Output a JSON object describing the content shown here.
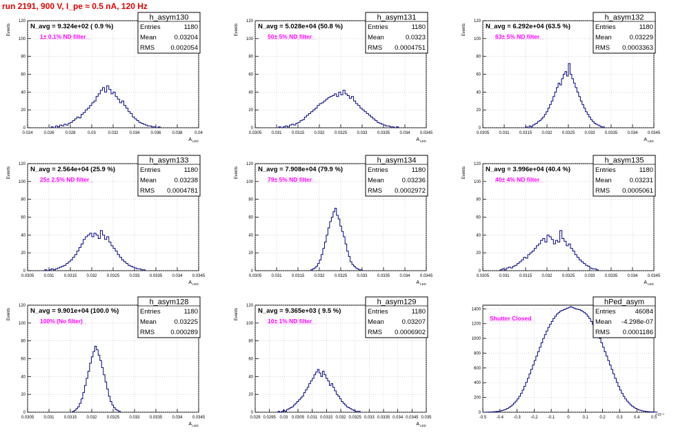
{
  "header": {
    "run_title": "run 2191,   900 V, I_pe ≈ 0.5 nA, 120 Hz"
  },
  "chart_data": [
    {
      "type": "histogram",
      "name": "h_asym130",
      "title": "N_avg = 9.324e+02 ( 0.9 %)",
      "filter_label": "1± 0.1% ND filter",
      "stats": {
        "Entries": "1180",
        "Mean": "0.03204",
        "RMS": "0.002054"
      },
      "ylabel": "Events",
      "xlabel": "A",
      "xlabel_sub": "LED",
      "xlim": [
        0.024,
        0.04
      ],
      "ylim": [
        0,
        120
      ],
      "xticks": [
        "0.024",
        "0.026",
        "0.028",
        "0.03",
        "0.032",
        "0.034",
        "0.036",
        "0.038",
        "0.04"
      ],
      "xtick_values": [
        0.024,
        0.026,
        0.028,
        0.03,
        0.032,
        0.034,
        0.036,
        0.038,
        0.04
      ],
      "yticks": [
        "0",
        "20",
        "40",
        "60",
        "80",
        "100",
        "120"
      ],
      "ytick_values": [
        0,
        20,
        40,
        60,
        80,
        100,
        120
      ],
      "bin_start": 0.0262,
      "bin_width": 0.0002,
      "counts": [
        1,
        0,
        2,
        1,
        3,
        2,
        4,
        3,
        5,
        6,
        8,
        10,
        12,
        11,
        15,
        17,
        20,
        22,
        25,
        28,
        30,
        35,
        38,
        42,
        45,
        40,
        47,
        43,
        38,
        40,
        35,
        32,
        28,
        30,
        25,
        22,
        18,
        16,
        12,
        10,
        8,
        6,
        5,
        4,
        3,
        2,
        2,
        1,
        1,
        0,
        1
      ]
    },
    {
      "type": "histogram",
      "name": "h_asym131",
      "title": "N_avg = 5.028e+04 (50.8 %)",
      "filter_label": "50± 5% ND filter",
      "stats": {
        "Entries": "1180",
        "Mean": "0.0323",
        "RMS": "0.0004751"
      },
      "ylabel": "Events",
      "xlabel": "A",
      "xlabel_sub": "LED",
      "xlim": [
        0.0305,
        0.0345
      ],
      "ylim": [
        0,
        120
      ],
      "xticks": [
        "0.0305",
        "0.031",
        "0.0315",
        "0.032",
        "0.0325",
        "0.033",
        "0.0335",
        "0.034",
        "0.0345"
      ],
      "xtick_values": [
        0.0305,
        0.031,
        0.0315,
        0.032,
        0.0325,
        0.033,
        0.0335,
        0.034,
        0.0345
      ],
      "yticks": [
        "0",
        "20",
        "40",
        "60",
        "80",
        "100",
        "120"
      ],
      "ytick_values": [
        0,
        20,
        40,
        60,
        80,
        100,
        120
      ],
      "bin_start": 0.03105,
      "bin_width": 5e-05,
      "counts": [
        1,
        0,
        1,
        2,
        1,
        3,
        4,
        3,
        5,
        6,
        8,
        9,
        12,
        14,
        16,
        18,
        20,
        22,
        25,
        27,
        28,
        30,
        32,
        34,
        35,
        36,
        38,
        35,
        40,
        37,
        42,
        38,
        36,
        33,
        35,
        30,
        27,
        25,
        22,
        20,
        18,
        16,
        14,
        12,
        10,
        8,
        6,
        5,
        4,
        3,
        2,
        2,
        1,
        1,
        0,
        1
      ]
    },
    {
      "type": "histogram",
      "name": "h_asym132",
      "title": "N_avg = 6.292e+04 (63.5 %)",
      "filter_label": "63± 5% ND filter",
      "stats": {
        "Entries": "1180",
        "Mean": "0.03229",
        "RMS": "0.0003363"
      },
      "ylabel": "Events",
      "xlabel": "A",
      "xlabel_sub": "LED",
      "xlim": [
        0.0305,
        0.0345
      ],
      "ylim": [
        0,
        120
      ],
      "xticks": [
        "0.0305",
        "0.031",
        "0.0315",
        "0.032",
        "0.0325",
        "0.033",
        "0.0335",
        "0.034",
        "0.0345"
      ],
      "xtick_values": [
        0.0305,
        0.031,
        0.0315,
        0.032,
        0.0325,
        0.033,
        0.0335,
        0.034,
        0.0345
      ],
      "yticks": [
        "0",
        "20",
        "40",
        "60",
        "80",
        "100",
        "120"
      ],
      "ytick_values": [
        0,
        20,
        40,
        60,
        80,
        100,
        120
      ],
      "bin_start": 0.0315,
      "bin_width": 4e-05,
      "counts": [
        1,
        0,
        2,
        1,
        3,
        4,
        5,
        7,
        8,
        10,
        12,
        15,
        18,
        22,
        26,
        30,
        35,
        40,
        45,
        50,
        48,
        55,
        60,
        63,
        58,
        72,
        60,
        55,
        50,
        45,
        40,
        35,
        30,
        26,
        22,
        18,
        15,
        12,
        9,
        7,
        5,
        4,
        3,
        2,
        1,
        1
      ]
    },
    {
      "type": "histogram",
      "name": "h_asym133",
      "title": "N_avg = 2.564e+04 (25.9 %)",
      "filter_label": "25± 2.5% ND filter",
      "stats": {
        "Entries": "1180",
        "Mean": "0.03238",
        "RMS": "0.0004781"
      },
      "ylabel": "Events",
      "xlabel": "A",
      "xlabel_sub": "LED",
      "xlim": [
        0.0305,
        0.0345
      ],
      "ylim": [
        0,
        120
      ],
      "xticks": [
        "0.0305",
        "0.031",
        "0.0315",
        "0.032",
        "0.0325",
        "0.033",
        "0.0335",
        "0.034",
        "0.0345"
      ],
      "xtick_values": [
        0.0305,
        0.031,
        0.0315,
        0.032,
        0.0325,
        0.033,
        0.0335,
        0.034,
        0.0345
      ],
      "yticks": [
        "0",
        "20",
        "40",
        "60",
        "80",
        "100",
        "120"
      ],
      "ytick_values": [
        0,
        20,
        40,
        60,
        80,
        100,
        120
      ],
      "bin_start": 0.0309,
      "bin_width": 5e-05,
      "counts": [
        1,
        0,
        1,
        2,
        1,
        2,
        3,
        4,
        5,
        6,
        8,
        10,
        12,
        15,
        18,
        22,
        26,
        30,
        35,
        38,
        40,
        42,
        38,
        42,
        40,
        36,
        45,
        40,
        35,
        38,
        32,
        28,
        25,
        22,
        18,
        15,
        12,
        10,
        8,
        6,
        5,
        4,
        3,
        2,
        2,
        1,
        1
      ]
    },
    {
      "type": "histogram",
      "name": "h_asym134",
      "title": "N_avg = 7.908e+04 (79.9 %)",
      "filter_label": "79± 5% ND filter",
      "stats": {
        "Entries": "1180",
        "Mean": "0.03236",
        "RMS": "0.0002972"
      },
      "ylabel": "Events",
      "xlabel": "A",
      "xlabel_sub": "LED",
      "xlim": [
        0.0305,
        0.0345
      ],
      "ylim": [
        0,
        120
      ],
      "xticks": [
        "0.0305",
        "0.031",
        "0.0315",
        "0.032",
        "0.0325",
        "0.033",
        "0.0335",
        "0.034",
        "0.0345"
      ],
      "xtick_values": [
        0.0305,
        0.031,
        0.0315,
        0.032,
        0.0325,
        0.033,
        0.0335,
        0.034,
        0.0345
      ],
      "yticks": [
        "0",
        "20",
        "40",
        "60",
        "80",
        "100",
        "120"
      ],
      "ytick_values": [
        0,
        20,
        40,
        60,
        80,
        100,
        120
      ],
      "bin_start": 0.0318,
      "bin_width": 4e-05,
      "counts": [
        1,
        2,
        3,
        5,
        8,
        12,
        18,
        25,
        32,
        40,
        48,
        55,
        60,
        66,
        70,
        62,
        58,
        50,
        44,
        38,
        30,
        22,
        16,
        10,
        7,
        5,
        3,
        2,
        1,
        1
      ]
    },
    {
      "type": "histogram",
      "name": "h_asym135",
      "title": "N_avg = 3.996e+04 (40.4 %)",
      "filter_label": "40± 4% ND filter",
      "stats": {
        "Entries": "1180",
        "Mean": "0.03231",
        "RMS": "0.0005061"
      },
      "ylabel": "Events",
      "xlabel": "A",
      "xlabel_sub": "LED",
      "xlim": [
        0.0305,
        0.0345
      ],
      "ylim": [
        0,
        120
      ],
      "xticks": [
        "0.0305",
        "0.031",
        "0.0315",
        "0.032",
        "0.0325",
        "0.033",
        "0.0335",
        "0.034",
        "0.0345"
      ],
      "xtick_values": [
        0.0305,
        0.031,
        0.0315,
        0.032,
        0.0325,
        0.033,
        0.0335,
        0.034,
        0.0345
      ],
      "yticks": [
        "0",
        "20",
        "40",
        "60",
        "80",
        "100",
        "120"
      ],
      "ytick_values": [
        0,
        20,
        40,
        60,
        80,
        100,
        120
      ],
      "bin_start": 0.0309,
      "bin_width": 5e-05,
      "counts": [
        1,
        2,
        1,
        3,
        4,
        3,
        5,
        6,
        8,
        10,
        12,
        15,
        14,
        18,
        20,
        22,
        25,
        28,
        30,
        34,
        36,
        32,
        40,
        38,
        35,
        30,
        34,
        32,
        45,
        36,
        33,
        28,
        30,
        25,
        22,
        18,
        15,
        12,
        10,
        8,
        6,
        5,
        3,
        2,
        2,
        1
      ]
    },
    {
      "type": "histogram",
      "name": "h_asym128",
      "title": "N_avg = 9.901e+04 (100.0 %)",
      "filter_label": "100% (No filter)",
      "stats": {
        "Entries": "1180",
        "Mean": "0.03225",
        "RMS": "0.000289"
      },
      "ylabel": "Events",
      "xlabel": "A",
      "xlabel_sub": "LED",
      "xlim": [
        0.0305,
        0.0345
      ],
      "ylim": [
        0,
        120
      ],
      "xticks": [
        "0.0305",
        "0.031",
        "0.0315",
        "0.032",
        "0.0325",
        "0.033",
        "0.0335",
        "0.034",
        "0.0345"
      ],
      "xtick_values": [
        0.0305,
        0.031,
        0.0315,
        0.032,
        0.0325,
        0.033,
        0.0335,
        0.034,
        0.0345
      ],
      "yticks": [
        "0",
        "20",
        "40",
        "60",
        "80",
        "100",
        "120"
      ],
      "ytick_values": [
        0,
        20,
        40,
        60,
        80,
        100,
        120
      ],
      "bin_start": 0.03155,
      "bin_width": 4e-05,
      "counts": [
        1,
        2,
        4,
        6,
        10,
        15,
        22,
        30,
        38,
        46,
        55,
        62,
        68,
        74,
        70,
        64,
        58,
        50,
        42,
        34,
        26,
        18,
        12,
        8,
        5,
        3,
        2,
        1
      ]
    },
    {
      "type": "histogram",
      "name": "h_asym129",
      "title": "N_avg = 9.365e+03 ( 9.5 %)",
      "filter_label": "10± 1% ND filter",
      "stats": {
        "Entries": "1180",
        "Mean": "0.03207",
        "RMS": "0.0006902"
      },
      "ylabel": "Events",
      "xlabel": "A",
      "xlabel_sub": "LED",
      "xlim": [
        0.029,
        0.035
      ],
      "ylim": [
        0,
        120
      ],
      "xticks": [
        "0.029",
        "0.0295",
        "0.03",
        "0.0305",
        "0.031",
        "0.0315",
        "0.032",
        "0.0325",
        "0.033",
        "0.0335",
        "0.034",
        "0.0345",
        "0.035"
      ],
      "xtick_values": [
        0.029,
        0.0295,
        0.03,
        0.0305,
        0.031,
        0.0315,
        0.032,
        0.0325,
        0.033,
        0.0335,
        0.034,
        0.0345,
        0.035
      ],
      "yticks": [
        "0",
        "20",
        "40",
        "60",
        "80",
        "100",
        "120"
      ],
      "ytick_values": [
        0,
        20,
        40,
        60,
        80,
        100,
        120
      ],
      "bin_start": 0.0298,
      "bin_width": 6e-05,
      "counts": [
        1,
        0,
        1,
        2,
        1,
        3,
        4,
        5,
        6,
        8,
        10,
        12,
        14,
        16,
        18,
        22,
        25,
        28,
        32,
        35,
        38,
        42,
        45,
        48,
        44,
        40,
        46,
        42,
        38,
        35,
        30,
        32,
        28,
        24,
        20,
        18,
        15,
        12,
        10,
        8,
        6,
        5,
        4,
        3,
        2,
        1,
        1,
        1
      ]
    },
    {
      "type": "histogram",
      "name": "hPed_asym",
      "title": "",
      "filter_label": "Shutter Closed",
      "stats": {
        "Entries": "46084",
        "Mean": "-4.298e-07",
        "RMS": "0.0001186"
      },
      "ylabel": "",
      "xlabel": "",
      "xlabel_sub": "",
      "x_exponent": "×10⁻³",
      "xlim": [
        -0.5,
        0.5
      ],
      "ylim": [
        0,
        1450
      ],
      "xticks": [
        "-0.5",
        "-0.4",
        "-0.3",
        "-0.2",
        "-0.1",
        "0",
        "0.1",
        "0.2",
        "0.3",
        "0.4",
        "0.5"
      ],
      "xtick_values": [
        -0.5,
        -0.4,
        -0.3,
        -0.2,
        -0.1,
        0,
        0.1,
        0.2,
        0.3,
        0.4,
        0.5
      ],
      "yticks": [
        "0",
        "200",
        "400",
        "600",
        "800",
        "1000",
        "1200",
        "1400"
      ],
      "ytick_values": [
        0,
        200,
        400,
        600,
        800,
        1000,
        1200,
        1400
      ],
      "bin_start": -0.48,
      "bin_width": 0.01,
      "counts": [
        1,
        2,
        3,
        4,
        6,
        8,
        10,
        14,
        18,
        24,
        30,
        40,
        52,
        66,
        82,
        100,
        125,
        150,
        180,
        215,
        255,
        300,
        350,
        405,
        460,
        520,
        580,
        640,
        700,
        760,
        820,
        880,
        940,
        1000,
        1050,
        1100,
        1150,
        1190,
        1230,
        1270,
        1300,
        1330,
        1350,
        1370,
        1380,
        1390,
        1400,
        1410,
        1420,
        1430,
        1420,
        1410,
        1400,
        1395,
        1390,
        1380,
        1365,
        1350,
        1330,
        1300,
        1270,
        1230,
        1190,
        1150,
        1100,
        1050,
        1000,
        940,
        880,
        820,
        760,
        700,
        640,
        580,
        520,
        460,
        405,
        350,
        300,
        255,
        215,
        180,
        150,
        125,
        100,
        82,
        66,
        52,
        40,
        30,
        24,
        18,
        14,
        10,
        8,
        6,
        4,
        3,
        2,
        1
      ]
    }
  ]
}
